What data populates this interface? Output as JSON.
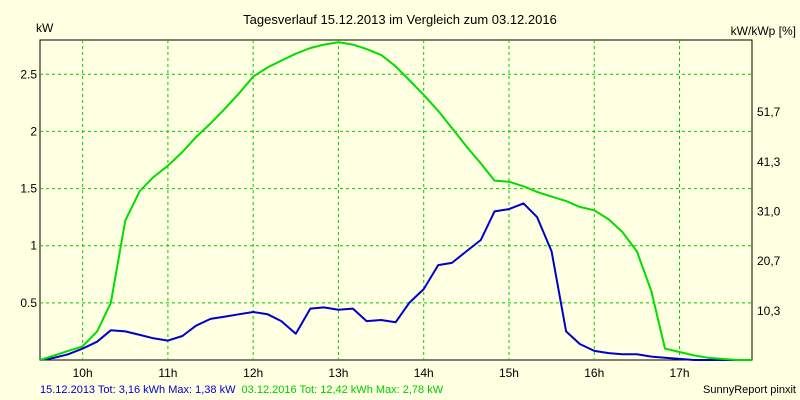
{
  "chart_data": {
    "type": "line",
    "title": "Tagesverlauf 15.12.2013 im Vergleich zum 03.12.2016",
    "ylabel_left": "kW",
    "ylabel_right": "kW/kWp [%]",
    "xlim": [
      9.5,
      17.85
    ],
    "ylim": [
      0,
      2.8
    ],
    "grid": true,
    "x_ticks": [
      10,
      11,
      12,
      13,
      14,
      15,
      16,
      17
    ],
    "x_tick_labels": [
      "10h",
      "11h",
      "12h",
      "13h",
      "14h",
      "15h",
      "16h",
      "17h"
    ],
    "y_ticks": [
      0.5,
      1,
      1.5,
      2,
      2.5
    ],
    "y_tick_labels": [
      "0.5",
      "1",
      "1.5",
      "2",
      "2.5"
    ],
    "y2_ticks": [
      0.4286,
      0.8661,
      1.2991,
      1.7321,
      2.1696
    ],
    "y2_tick_labels": [
      "10,3",
      "20,7",
      "31,0",
      "41,3",
      "51,7"
    ],
    "series": [
      {
        "name": "15.12.2013",
        "color": "#0000cc",
        "x": [
          9.5,
          9.67,
          9.83,
          10.0,
          10.17,
          10.33,
          10.5,
          10.67,
          10.83,
          11.0,
          11.17,
          11.33,
          11.5,
          11.67,
          11.83,
          12.0,
          12.17,
          12.33,
          12.5,
          12.67,
          12.83,
          13.0,
          13.17,
          13.33,
          13.5,
          13.67,
          13.83,
          14.0,
          14.17,
          14.33,
          14.5,
          14.67,
          14.83,
          15.0,
          15.17,
          15.33,
          15.5,
          15.67,
          15.83,
          16.0,
          16.17,
          16.33,
          16.5,
          16.67,
          16.83,
          17.0,
          17.17,
          17.33,
          17.5,
          17.67,
          17.85
        ],
        "values": [
          0.0,
          0.02,
          0.05,
          0.1,
          0.16,
          0.26,
          0.25,
          0.22,
          0.19,
          0.17,
          0.21,
          0.3,
          0.36,
          0.38,
          0.4,
          0.42,
          0.4,
          0.34,
          0.23,
          0.45,
          0.46,
          0.44,
          0.45,
          0.34,
          0.35,
          0.33,
          0.5,
          0.62,
          0.83,
          0.85,
          0.95,
          1.05,
          1.3,
          1.32,
          1.37,
          1.25,
          0.95,
          0.25,
          0.14,
          0.08,
          0.06,
          0.05,
          0.05,
          0.03,
          0.02,
          0.01,
          0.0,
          0.0,
          0.0,
          0.0,
          0.0
        ]
      },
      {
        "name": "03.12.2016",
        "color": "#00dd00",
        "x": [
          9.5,
          9.67,
          9.83,
          10.0,
          10.17,
          10.33,
          10.5,
          10.67,
          10.83,
          11.0,
          11.17,
          11.33,
          11.5,
          11.67,
          11.83,
          12.0,
          12.17,
          12.33,
          12.5,
          12.67,
          12.83,
          13.0,
          13.17,
          13.33,
          13.5,
          13.67,
          13.83,
          14.0,
          14.17,
          14.33,
          14.5,
          14.67,
          14.83,
          15.0,
          15.17,
          15.33,
          15.5,
          15.67,
          15.83,
          16.0,
          16.17,
          16.33,
          16.5,
          16.67,
          16.83,
          17.0,
          17.17,
          17.33,
          17.5,
          17.67,
          17.85
        ],
        "values": [
          0.0,
          0.04,
          0.08,
          0.12,
          0.25,
          0.5,
          1.22,
          1.48,
          1.6,
          1.7,
          1.82,
          1.95,
          2.07,
          2.2,
          2.33,
          2.48,
          2.56,
          2.62,
          2.68,
          2.73,
          2.76,
          2.78,
          2.76,
          2.72,
          2.67,
          2.57,
          2.45,
          2.32,
          2.18,
          2.03,
          1.87,
          1.72,
          1.57,
          1.56,
          1.52,
          1.47,
          1.43,
          1.39,
          1.34,
          1.31,
          1.23,
          1.12,
          0.95,
          0.6,
          0.1,
          0.07,
          0.04,
          0.02,
          0.01,
          0.0,
          0.0
        ]
      }
    ]
  },
  "footer": {
    "left_blue": "15.12.2013 Tot: 3,16 kWh Max: 1,38 kW",
    "left_green": "03.12.2016 Tot: 12,42 kWh Max: 2,78 kW",
    "right": "SunnyReport pinxit"
  }
}
